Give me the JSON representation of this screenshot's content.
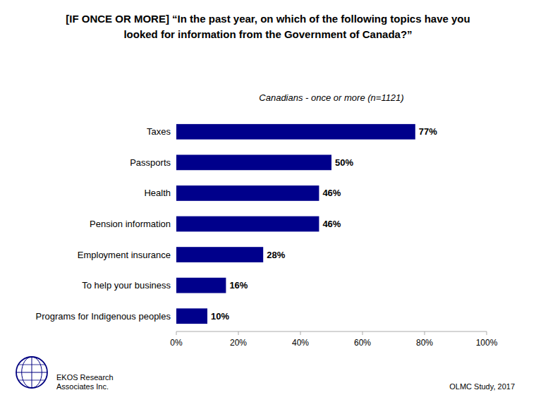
{
  "chart_data": {
    "type": "bar",
    "orientation": "horizontal",
    "title": [
      "[IF ONCE OR MORE] “In the past year, on which of the following topics have you",
      "looked for information from the Government of Canada?”"
    ],
    "subtitle": "Canadians - once or more (n=1121)",
    "categories": [
      "Taxes",
      "Passports",
      "Health",
      "Pension information",
      "Employment insurance",
      "To help your business",
      "Programs for Indigenous peoples"
    ],
    "values": [
      77,
      50,
      46,
      46,
      28,
      16,
      10
    ],
    "value_labels": [
      "77%",
      "50%",
      "46%",
      "46%",
      "28%",
      "16%",
      "10%"
    ],
    "data_labels": true,
    "color": "#00008B",
    "xlim": [
      0,
      100
    ],
    "xticks": [
      {
        "value": 0,
        "label": "0%"
      },
      {
        "value": 20,
        "label": "20%"
      },
      {
        "value": 40,
        "label": "40%"
      },
      {
        "value": 60,
        "label": "60%"
      },
      {
        "value": 80,
        "label": "80%"
      },
      {
        "value": 100,
        "label": "100%"
      }
    ],
    "grid": false,
    "annotations": [
      "EKOS Research\nAssociates Inc.",
      "OLMC Study, 2017"
    ]
  }
}
